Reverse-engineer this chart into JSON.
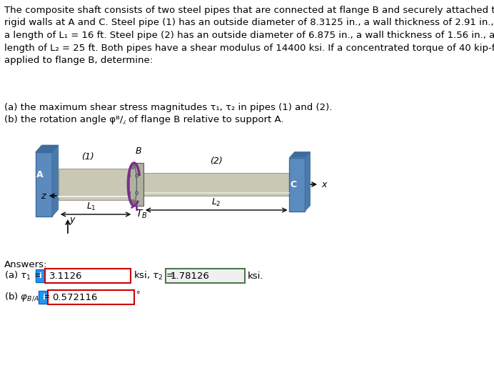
{
  "title_text": "The composite shaft consists of two steel pipes that are connected at flange B and securely attached to\nrigid walls at A and C. Steel pipe (1) has an outside diameter of 8.3125 in., a wall thickness of 2.91 in., and\na length of L₁ = 16 ft. Steel pipe (2) has an outside diameter of 6.875 in., a wall thickness of 1.56 in., and a\nlength of L₂ = 25 ft. Both pipes have a shear modulus of 14400 ksi. If a concentrated torque of 40 kip-ft is\napplied to flange B, determine:",
  "question_a": "(a) the maximum shear stress magnitudes τ₁, τ₂ in pipes (1) and (2).",
  "question_b": "(b) the rotation angle φᴮ/⁁ of flange B relative to support A.",
  "answers_label": "Answers:",
  "answer_a_value": "3.1126",
  "answer_a2_value": "1.78126",
  "answer_a2_unit": "ksi.",
  "answer_b_value": "0.572116",
  "answer_b_unit": "°",
  "bg_color": "#ffffff",
  "text_color": "#000000",
  "box1_bg": "#ffffff",
  "box1_border": "#cc0000",
  "box2_bg": "#f0f0f0",
  "box2_border": "#4a7a4a",
  "info_btn_color": "#2196F3",
  "font_size_text": 9.5,
  "wall_color": "#5b8abf",
  "wall_dark": "#3d6b9c",
  "pipe_color": "#c8c8b4",
  "pipe_dark": "#a0a090",
  "flange_color": "#b0b0a0",
  "torque_color": "#7b2d8b"
}
